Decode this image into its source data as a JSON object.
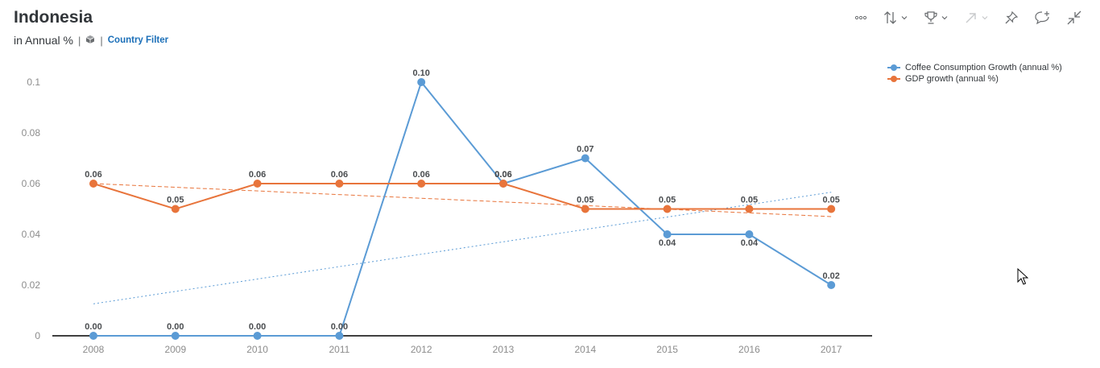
{
  "header": {
    "title": "Indonesia",
    "subtitle": "in Annual %",
    "separator": "|",
    "filter_label": "Country Filter"
  },
  "toolbar": {
    "icons": [
      "more-icon",
      "sort-icon",
      "ranking-icon",
      "drill-icon",
      "pin-icon",
      "comment-icon",
      "collapse-icon"
    ]
  },
  "colors": {
    "coffee": "#5b9bd5",
    "gdp": "#e8743b",
    "axis": "#000000",
    "tick_text": "#8c8c8c"
  },
  "chart_data": {
    "type": "line",
    "categories": [
      "2008",
      "2009",
      "2010",
      "2011",
      "2012",
      "2013",
      "2014",
      "2015",
      "2016",
      "2017"
    ],
    "ylim": [
      0,
      0.1
    ],
    "yticks": [
      "0",
      "0.02",
      "0.04",
      "0.06",
      "0.08",
      "0.1"
    ],
    "grid": false,
    "legend_position": "top-right",
    "series": [
      {
        "name": "Coffee Consumption Growth (annual %)",
        "values": [
          0.0,
          0.0,
          0.0,
          0.0,
          0.1,
          0.06,
          0.07,
          0.04,
          0.04,
          0.02
        ],
        "labels": [
          "0.00",
          "0.00",
          "0.00",
          "0.00",
          "0.10",
          "0.06",
          "0.07",
          "0.04",
          "0.04",
          "0.02"
        ],
        "trendline": [
          0.0126,
          0.0566
        ]
      },
      {
        "name": "GDP growth (annual %)",
        "values": [
          0.06,
          0.05,
          0.06,
          0.06,
          0.06,
          0.06,
          0.05,
          0.05,
          0.05,
          0.05
        ],
        "labels": [
          "0.06",
          "0.05",
          "0.06",
          "0.06",
          "0.06",
          "0.06",
          "0.05",
          "0.05",
          "0.05",
          "0.05"
        ],
        "trendline": [
          0.06,
          0.047
        ]
      }
    ]
  }
}
